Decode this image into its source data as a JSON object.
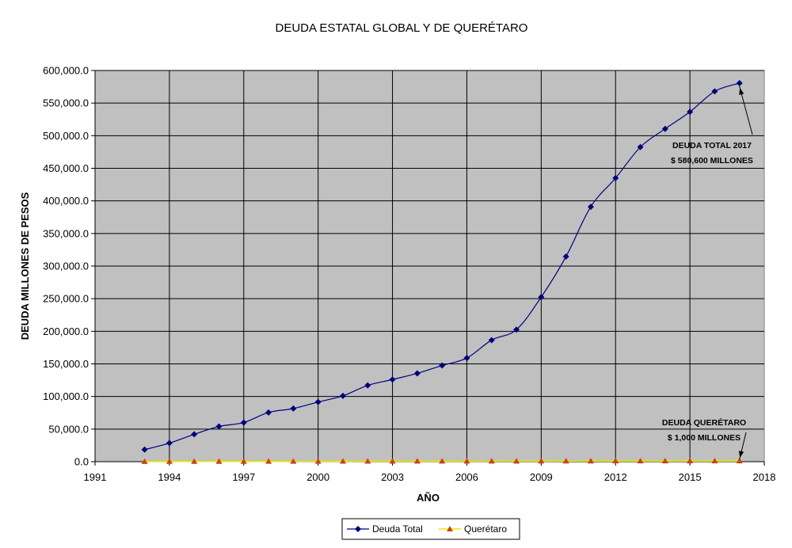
{
  "chart_data": {
    "type": "line",
    "title": "DEUDA ESTATAL GLOBAL Y DE QUERÉTARO",
    "xlabel": "AÑO",
    "ylabel": "DEUDA MILLONES DE PESOS",
    "xlim": [
      1991,
      2018
    ],
    "ylim": [
      0,
      600000
    ],
    "x_ticks": [
      "1991",
      "1994",
      "1997",
      "2000",
      "2003",
      "2006",
      "2009",
      "2012",
      "2015",
      "2018"
    ],
    "y_ticks": [
      "0.0",
      "50,000.0",
      "100,000.0",
      "150,000.0",
      "200,000.0",
      "250,000.0",
      "300,000.0",
      "350,000.0",
      "400,000.0",
      "450,000.0",
      "500,000.0",
      "550,000.0",
      "600,000.0"
    ],
    "grid": true,
    "legend_position": "bottom",
    "x": [
      1993,
      1994,
      1995,
      1996,
      1997,
      1998,
      1999,
      2000,
      2001,
      2002,
      2003,
      2004,
      2005,
      2006,
      2007,
      2008,
      2009,
      2010,
      2011,
      2012,
      2013,
      2014,
      2015,
      2016,
      2017
    ],
    "series": [
      {
        "name": "Deuda Total",
        "color": "#000080",
        "marker": "diamond",
        "values": [
          18500,
          28500,
          42000,
          54000,
          60000,
          75500,
          81500,
          91500,
          101000,
          117000,
          126000,
          135500,
          147500,
          159000,
          186500,
          202500,
          252500,
          314500,
          391000,
          435000,
          482500,
          510500,
          536500,
          568000,
          580600
        ]
      },
      {
        "name": "Querétaro",
        "color": "#e8e800",
        "marker": "triangle",
        "marker_color": "#cc4400",
        "values": [
          200,
          250,
          300,
          350,
          350,
          400,
          450,
          500,
          550,
          600,
          650,
          700,
          700,
          700,
          750,
          800,
          850,
          900,
          950,
          1000,
          1000,
          1000,
          1000,
          1000,
          1000
        ]
      }
    ],
    "annotations": [
      {
        "lines": [
          "DEUDA TOTAL 2017",
          "$ 580,600 MILLONES"
        ],
        "points_to": {
          "x": 2017,
          "y": 580600
        }
      },
      {
        "lines": [
          "DEUDA QUERÉTARO",
          "$ 1,000 MILLONES"
        ],
        "points_to": {
          "x": 2017,
          "y": 1000
        }
      }
    ],
    "colors": {
      "plot_background": "#c0c0c0",
      "gridline": "#000000"
    }
  }
}
